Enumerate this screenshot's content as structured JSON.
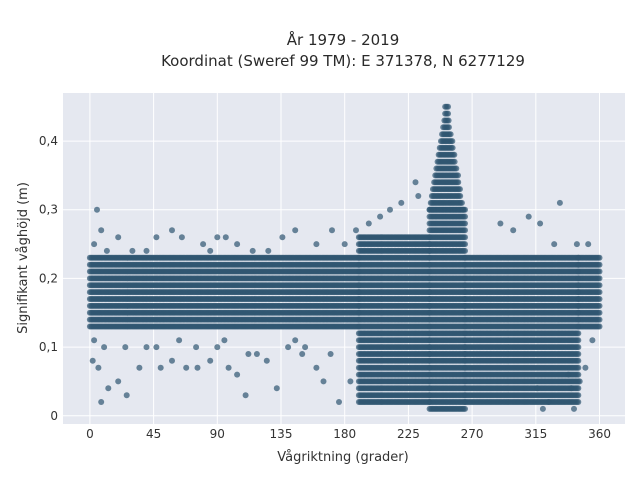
{
  "chart_data": {
    "type": "scatter",
    "title_line1": "År 1979 - 2019",
    "title_line2": "Koordinat (Sweref 99 TM): E 371378, N 6277129",
    "xlabel": "Vågriktning (grader)",
    "ylabel": "Signifikant våghöjd (m)",
    "xlim": [
      -19,
      378
    ],
    "ylim": [
      -0.012,
      0.47
    ],
    "xticks": [
      0,
      45,
      90,
      135,
      180,
      225,
      270,
      315,
      360
    ],
    "xtick_labels": [
      "0",
      "45",
      "90",
      "135",
      "180",
      "225",
      "270",
      "315",
      "360"
    ],
    "yticks": [
      0,
      0.1,
      0.2,
      0.3,
      0.4
    ],
    "ytick_labels": [
      "0",
      "0,1",
      "0,2",
      "0,3",
      "0,4"
    ],
    "grid": true,
    "marker_color": "#2f5670",
    "plot_background": "#e5e8f0",
    "x_step": 1,
    "y_step": 0.01,
    "dense_band": [
      {
        "x": [
          0,
          190
        ],
        "y": [
          0.13,
          0.23
        ]
      },
      {
        "x": [
          190,
          240
        ],
        "y": [
          0.02,
          0.26
        ]
      },
      {
        "x": [
          240,
          265
        ],
        "y": [
          0.01,
          0.3
        ]
      },
      {
        "x": [
          265,
          345
        ],
        "y": [
          0.02,
          0.23
        ]
      },
      {
        "x": [
          345,
          360
        ],
        "y": [
          0.13,
          0.23
        ]
      }
    ],
    "peak": {
      "x_center": 252,
      "y_max": 0.45
    },
    "outliers": [
      [
        5,
        0.3
      ],
      [
        8,
        0.27
      ],
      [
        3,
        0.25
      ],
      [
        12,
        0.24
      ],
      [
        20,
        0.26
      ],
      [
        30,
        0.24
      ],
      [
        40,
        0.24
      ],
      [
        47,
        0.26
      ],
      [
        58,
        0.27
      ],
      [
        65,
        0.26
      ],
      [
        80,
        0.25
      ],
      [
        85,
        0.24
      ],
      [
        90,
        0.26
      ],
      [
        96,
        0.26
      ],
      [
        104,
        0.25
      ],
      [
        115,
        0.24
      ],
      [
        126,
        0.24
      ],
      [
        136,
        0.26
      ],
      [
        145,
        0.27
      ],
      [
        160,
        0.25
      ],
      [
        171,
        0.27
      ],
      [
        180,
        0.25
      ],
      [
        188,
        0.27
      ],
      [
        197,
        0.28
      ],
      [
        205,
        0.29
      ],
      [
        212,
        0.3
      ],
      [
        220,
        0.31
      ],
      [
        230,
        0.34
      ],
      [
        232,
        0.32
      ],
      [
        290,
        0.28
      ],
      [
        299,
        0.27
      ],
      [
        310,
        0.29
      ],
      [
        318,
        0.28
      ],
      [
        328,
        0.25
      ],
      [
        332,
        0.31
      ],
      [
        344,
        0.25
      ],
      [
        352,
        0.25
      ],
      [
        6,
        0.07
      ],
      [
        2,
        0.08
      ],
      [
        8,
        0.02
      ],
      [
        13,
        0.04
      ],
      [
        20,
        0.05
      ],
      [
        26,
        0.03
      ],
      [
        35,
        0.07
      ],
      [
        40,
        0.1
      ],
      [
        50,
        0.07
      ],
      [
        58,
        0.08
      ],
      [
        68,
        0.07
      ],
      [
        76,
        0.07
      ],
      [
        85,
        0.08
      ],
      [
        90,
        0.1
      ],
      [
        98,
        0.07
      ],
      [
        104,
        0.06
      ],
      [
        110,
        0.03
      ],
      [
        118,
        0.09
      ],
      [
        125,
        0.08
      ],
      [
        132,
        0.04
      ],
      [
        140,
        0.1
      ],
      [
        150,
        0.09
      ],
      [
        160,
        0.07
      ],
      [
        165,
        0.05
      ],
      [
        170,
        0.09
      ],
      [
        176,
        0.02
      ],
      [
        184,
        0.05
      ],
      [
        3,
        0.11
      ],
      [
        10,
        0.1
      ],
      [
        25,
        0.1
      ],
      [
        47,
        0.1
      ],
      [
        63,
        0.11
      ],
      [
        75,
        0.1
      ],
      [
        95,
        0.11
      ],
      [
        112,
        0.09
      ],
      [
        145,
        0.11
      ],
      [
        152,
        0.1
      ],
      [
        340,
        0.04
      ],
      [
        342,
        0.01
      ],
      [
        346,
        0.05
      ],
      [
        350,
        0.07
      ],
      [
        355,
        0.11
      ],
      [
        338,
        0.06
      ],
      [
        320,
        0.01
      ],
      [
        324,
        0.02
      ],
      [
        316,
        0.04
      ]
    ]
  }
}
